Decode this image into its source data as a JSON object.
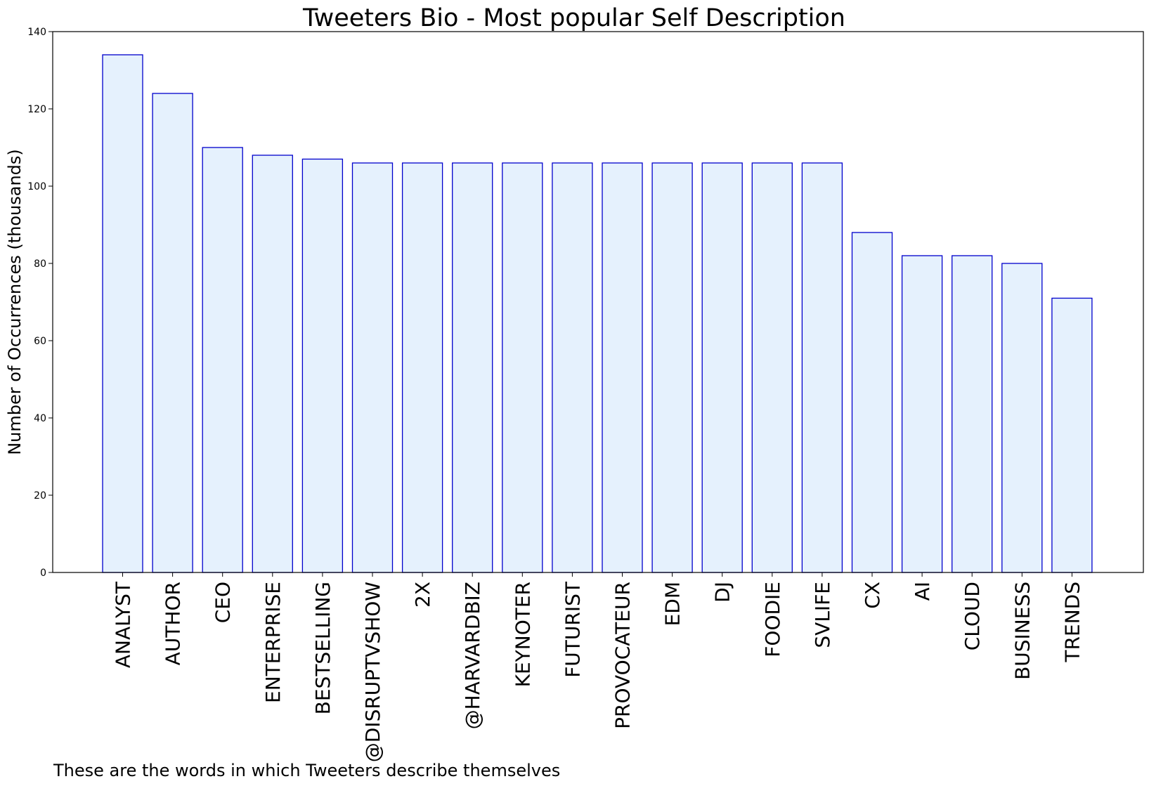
{
  "chart_data": {
    "type": "bar",
    "title": "Tweeters Bio - Most popular Self Description",
    "xlabel": "",
    "ylabel": "Number of Occurrences (thousands)",
    "caption": "These are the words in which Tweeters describe themselves",
    "categories": [
      "ANALYST",
      "AUTHOR",
      "CEO",
      "ENTERPRISE",
      "BESTSELLING",
      "@DISRUPTVSHOW",
      "2X",
      "@HARVARDBIZ",
      "KEYNOTER",
      "FUTURIST",
      "PROVOCATEUR",
      "EDM",
      "DJ",
      "FOODIE",
      "SVLIFE",
      "CX",
      "AI",
      "CLOUD",
      "BUSINESS",
      "TRENDS"
    ],
    "values": [
      134,
      124,
      110,
      108,
      107,
      106,
      106,
      106,
      106,
      106,
      106,
      106,
      106,
      106,
      106,
      88,
      82,
      82,
      80,
      71
    ],
    "ylim": [
      0,
      140
    ],
    "yticks": [
      0,
      20,
      40,
      60,
      80,
      100,
      120,
      140
    ],
    "grid": false,
    "colors": {
      "bar_fill": "#e5f1fd",
      "bar_edge": "#0000cc"
    }
  }
}
